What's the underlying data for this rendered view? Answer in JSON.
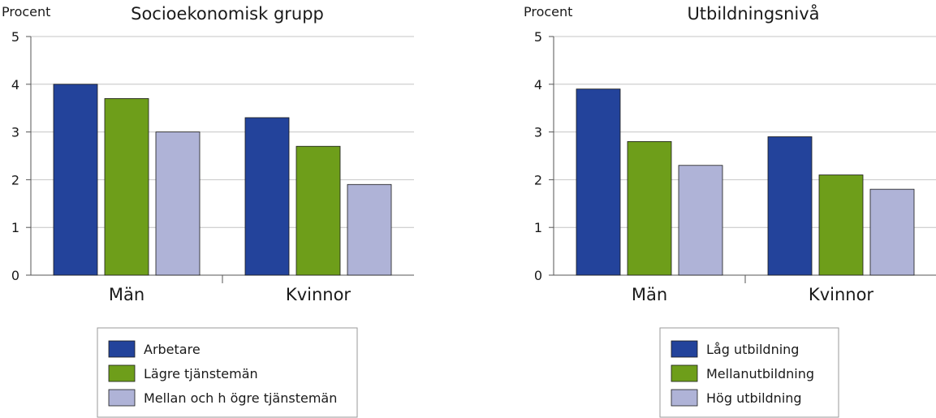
{
  "chart_data": [
    {
      "type": "bar",
      "title": "Socioekonomisk grupp",
      "ylabel": "Procent",
      "xlabel": "",
      "ylim": [
        0,
        5
      ],
      "yticks": [
        "0",
        "1",
        "2",
        "3",
        "4",
        "5"
      ],
      "categories": [
        "Män",
        "Kvinnor"
      ],
      "series": [
        {
          "name": "Arbetare",
          "values": [
            4.0,
            3.3
          ],
          "color": "#23439b"
        },
        {
          "name": "Lägre tjänstemän",
          "values": [
            3.7,
            2.7
          ],
          "color": "#6e9e1a"
        },
        {
          "name": "Mellan och h ögre tjänstemän",
          "values": [
            3.0,
            1.9
          ],
          "color": "#afb3d7"
        }
      ],
      "grid": true,
      "legend": "bottom"
    },
    {
      "type": "bar",
      "title": "Utbildningsnivå",
      "ylabel": "Procent",
      "xlabel": "",
      "ylim": [
        0,
        5
      ],
      "yticks": [
        "0",
        "1",
        "2",
        "3",
        "4",
        "5"
      ],
      "categories": [
        "Män",
        "Kvinnor"
      ],
      "series": [
        {
          "name": "Låg utbildning",
          "values": [
            3.9,
            2.9
          ],
          "color": "#23439b"
        },
        {
          "name": "Mellanutbildning",
          "values": [
            2.8,
            2.1
          ],
          "color": "#6e9e1a"
        },
        {
          "name": "Hög utbildning",
          "values": [
            2.3,
            1.8
          ],
          "color": "#afb3d7"
        }
      ],
      "grid": true,
      "legend": "bottom"
    }
  ]
}
